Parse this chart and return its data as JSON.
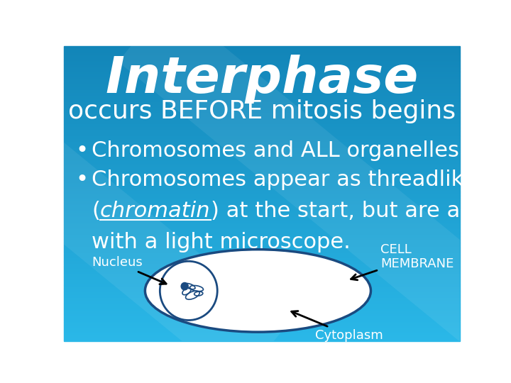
{
  "title": "Interphase",
  "subtitle": "occurs BEFORE mitosis begins",
  "label_nucleus": "Nucleus",
  "label_cell_membrane": "CELL\nMEMBRANE",
  "label_cytoplasm": "Cytoplasm",
  "title_fontsize": 52,
  "subtitle_fontsize": 26,
  "bullet_fontsize": 22,
  "label_fontsize": 13
}
